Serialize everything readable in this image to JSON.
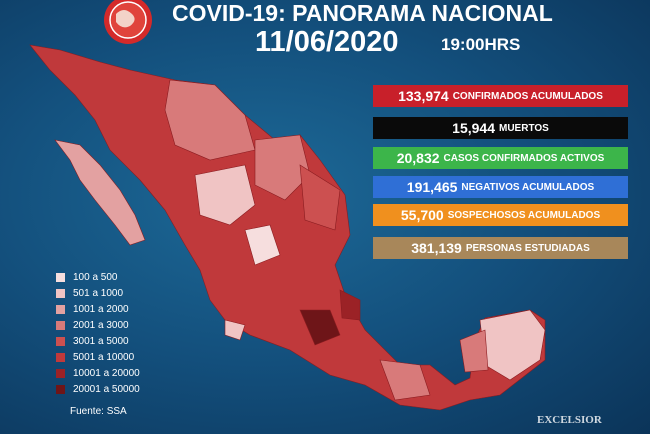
{
  "header": {
    "title": "COVID-19: PANORAMA NACIONAL",
    "date": "11/06/2020",
    "time": "19:00HRS"
  },
  "stats": [
    {
      "value": "133,974",
      "label": "CONFIRMADOS ACUMULADOS",
      "color": "#c8202a"
    },
    {
      "value": "15,944",
      "label": "MUERTOS",
      "color": "#0a0a0a"
    },
    {
      "value": "20,832",
      "label": "CASOS CONFIRMADOS ACTIVOS",
      "color": "#3cb54a"
    },
    {
      "value": "191,465",
      "label": "NEGATIVOS ACUMULADOS",
      "color": "#2f6fd6"
    },
    {
      "value": "55,700",
      "label": "SOSPECHOSOS ACUMULADOS",
      "color": "#f0901e"
    },
    {
      "value": "381,139",
      "label": "PERSONAS ESTUDIADAS",
      "color": "#a8875a"
    }
  ],
  "legend": [
    {
      "label": "100 a 500",
      "color": "#f6dede"
    },
    {
      "label": "501 a 1000",
      "color": "#f0c4c4"
    },
    {
      "label": "1001 a 2000",
      "color": "#e3a1a1"
    },
    {
      "label": "2001 a 3000",
      "color": "#d87a7a"
    },
    {
      "label": "3001 a 5000",
      "color": "#cc5050"
    },
    {
      "label": "5001 a 10000",
      "color": "#c0393b"
    },
    {
      "label": "10001 a 20000",
      "color": "#9b2226"
    },
    {
      "label": "20001 a 50000",
      "color": "#6e1518"
    }
  ],
  "source": "Fuente: SSA",
  "brand": "EXCELSIOR"
}
